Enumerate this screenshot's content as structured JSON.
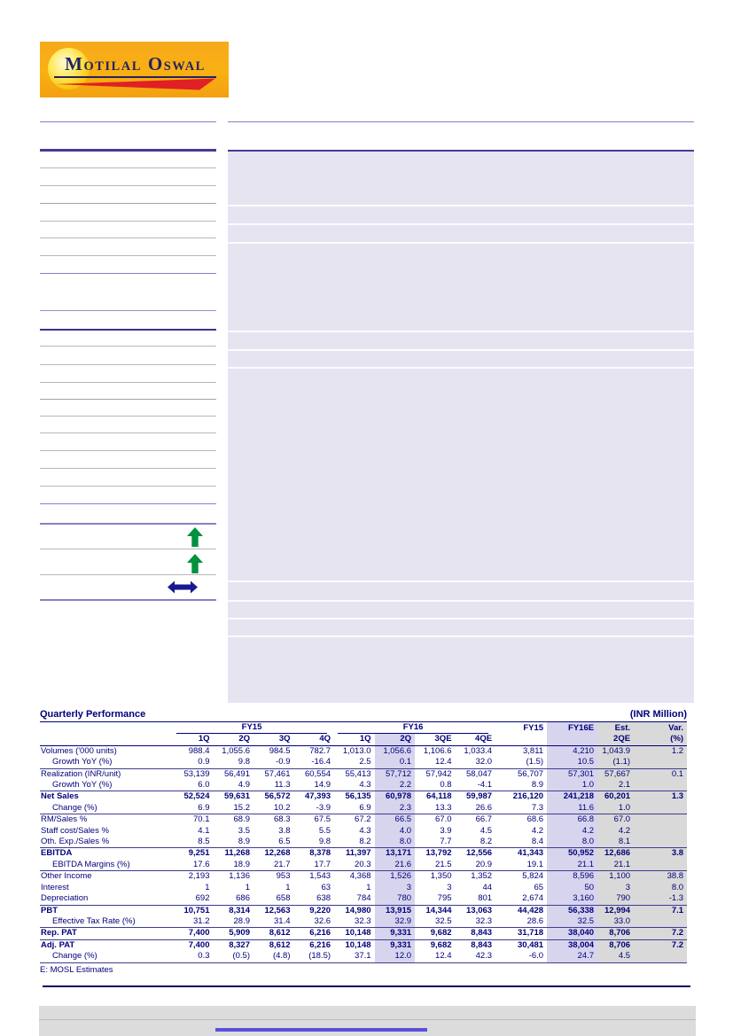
{
  "logo": {
    "words": [
      "Motilal",
      "Oswal"
    ]
  },
  "indicators": {
    "trend_1": "up",
    "trend_2": "up",
    "trend_3": "flat"
  },
  "colors": {
    "navy": "#00007a",
    "orange_brand": "#f9b013",
    "red_swoosh": "#e02024",
    "lavender_highlight": "#d7d4ee",
    "gray_highlight": "#d9d9d9",
    "green_arrow": "#00913f",
    "blue_arrow": "#18188f",
    "accent_line": "#5a50dc"
  },
  "quarterly_table": {
    "title": "Quarterly Performance",
    "unit": "(INR Million)",
    "groups": [
      {
        "label": "FY15",
        "cols": [
          "1Q",
          "2Q",
          "3Q",
          "4Q"
        ]
      },
      {
        "label": "FY16",
        "cols": [
          "1Q",
          "2Q",
          "3QE",
          "4QE"
        ]
      }
    ],
    "annual_cols": [
      {
        "line1": "FY15",
        "line2": ""
      },
      {
        "line1": "FY16E",
        "line2": ""
      },
      {
        "line1": "Est.",
        "line2": "2QE"
      },
      {
        "line1": "Var.",
        "line2": "(%)"
      }
    ],
    "rows": [
      {
        "label": "Volumes ('000 units)",
        "indent": false,
        "bold": false,
        "border": false,
        "values": [
          "988.4",
          "1,055.6",
          "984.5",
          "782.7",
          "1,013.0",
          "1,056.6",
          "1,106.6",
          "1,033.4",
          "3,811",
          "4,210",
          "1,043.9",
          "1.2"
        ]
      },
      {
        "label": "Growth YoY (%)",
        "indent": true,
        "bold": false,
        "border": true,
        "values": [
          "0.9",
          "9.8",
          "-0.9",
          "-16.4",
          "2.5",
          "0.1",
          "12.4",
          "32.0",
          "(1.5)",
          "10.5",
          "(1.1)",
          ""
        ]
      },
      {
        "label": "Realization (INR/unit)",
        "indent": false,
        "bold": false,
        "border": false,
        "values": [
          "53,139",
          "56,491",
          "57,461",
          "60,554",
          "55,413",
          "57,712",
          "57,942",
          "58,047",
          "56,707",
          "57,301",
          "57,667",
          "0.1"
        ]
      },
      {
        "label": "Growth YoY (%)",
        "indent": true,
        "bold": false,
        "border": true,
        "values": [
          "6.0",
          "4.9",
          "11.3",
          "14.9",
          "4.3",
          "2.2",
          "0.8",
          "-4.1",
          "8.9",
          "1.0",
          "2.1",
          ""
        ]
      },
      {
        "label": "Net Sales",
        "indent": false,
        "bold": true,
        "border": false,
        "values": [
          "52,524",
          "59,631",
          "56,572",
          "47,393",
          "56,135",
          "60,978",
          "64,118",
          "59,987",
          "216,120",
          "241,218",
          "60,201",
          "1.3"
        ]
      },
      {
        "label": "Change (%)",
        "indent": true,
        "bold": false,
        "border": true,
        "values": [
          "6.9",
          "15.2",
          "10.2",
          "-3.9",
          "6.9",
          "2.3",
          "13.3",
          "26.6",
          "7.3",
          "11.6",
          "1.0",
          ""
        ]
      },
      {
        "label": "RM/Sales %",
        "indent": false,
        "bold": false,
        "border": false,
        "values": [
          "70.1",
          "68.9",
          "68.3",
          "67.5",
          "67.2",
          "66.5",
          "67.0",
          "66.7",
          "68.6",
          "66.8",
          "67.0",
          ""
        ]
      },
      {
        "label": "Staff cost/Sales %",
        "indent": false,
        "bold": false,
        "border": false,
        "values": [
          "4.1",
          "3.5",
          "3.8",
          "5.5",
          "4.3",
          "4.0",
          "3.9",
          "4.5",
          "4.2",
          "4.2",
          "4.2",
          ""
        ]
      },
      {
        "label": "Oth. Exp./Sales %",
        "indent": false,
        "bold": false,
        "border": true,
        "values": [
          "8.5",
          "8.9",
          "6.5",
          "9.8",
          "8.2",
          "8.0",
          "7.7",
          "8.2",
          "8.4",
          "8.0",
          "8.1",
          ""
        ]
      },
      {
        "label": "EBITDA",
        "indent": false,
        "bold": true,
        "border": false,
        "values": [
          "9,251",
          "11,268",
          "12,268",
          "8,378",
          "11,397",
          "13,171",
          "13,792",
          "12,556",
          "41,343",
          "50,952",
          "12,686",
          "3.8"
        ]
      },
      {
        "label": "EBITDA Margins (%)",
        "indent": true,
        "bold": false,
        "border": true,
        "values": [
          "17.6",
          "18.9",
          "21.7",
          "17.7",
          "20.3",
          "21.6",
          "21.5",
          "20.9",
          "19.1",
          "21.1",
          "21.1",
          ""
        ]
      },
      {
        "label": "Other Income",
        "indent": false,
        "bold": false,
        "border": false,
        "values": [
          "2,193",
          "1,136",
          "953",
          "1,543",
          "4,368",
          "1,526",
          "1,350",
          "1,352",
          "5,824",
          "8,596",
          "1,100",
          "38.8"
        ]
      },
      {
        "label": "Interest",
        "indent": false,
        "bold": false,
        "border": false,
        "values": [
          "1",
          "1",
          "1",
          "63",
          "1",
          "3",
          "3",
          "44",
          "65",
          "50",
          "3",
          "8.0"
        ]
      },
      {
        "label": "Depreciation",
        "indent": false,
        "bold": false,
        "border": true,
        "values": [
          "692",
          "686",
          "658",
          "638",
          "784",
          "780",
          "795",
          "801",
          "2,674",
          "3,160",
          "790",
          "-1.3"
        ]
      },
      {
        "label": "PBT",
        "indent": false,
        "bold": true,
        "border": false,
        "values": [
          "10,751",
          "8,314",
          "12,563",
          "9,220",
          "14,980",
          "13,915",
          "14,344",
          "13,063",
          "44,428",
          "56,338",
          "12,994",
          "7.1"
        ]
      },
      {
        "label": "Effective Tax Rate (%)",
        "indent": true,
        "bold": false,
        "border": true,
        "values": [
          "31.2",
          "28.9",
          "31.4",
          "32.6",
          "32.3",
          "32.9",
          "32.5",
          "32.3",
          "28.6",
          "32.5",
          "33.0",
          ""
        ]
      },
      {
        "label": "Rep. PAT",
        "indent": false,
        "bold": true,
        "border": true,
        "values": [
          "7,400",
          "5,909",
          "8,612",
          "6,216",
          "10,148",
          "9,331",
          "9,682",
          "8,843",
          "31,718",
          "38,040",
          "8,706",
          "7.2"
        ]
      },
      {
        "label": "Adj. PAT",
        "indent": false,
        "bold": true,
        "border": false,
        "values": [
          "7,400",
          "8,327",
          "8,612",
          "6,216",
          "10,148",
          "9,331",
          "9,682",
          "8,843",
          "30,481",
          "38,004",
          "8,706",
          "7.2"
        ]
      },
      {
        "label": "Change (%)",
        "indent": true,
        "bold": false,
        "border": true,
        "values": [
          "0.3",
          "(0.5)",
          "(4.8)",
          "(18.5)",
          "37.1",
          "12.0",
          "12.4",
          "42.3",
          "-6.0",
          "24.7",
          "4.5",
          ""
        ]
      }
    ],
    "footnote": "E: MOSL Estimates"
  }
}
